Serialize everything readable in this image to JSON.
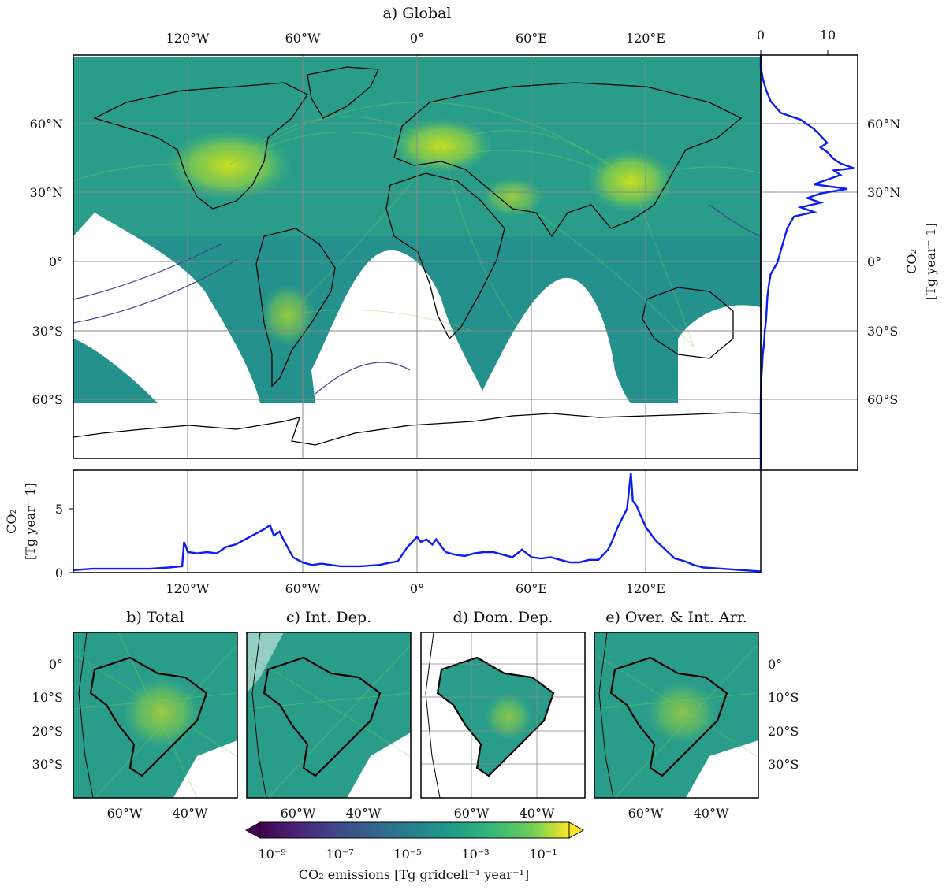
{
  "panels": {
    "a": {
      "title": "a) Global"
    },
    "b": {
      "title": "b) Total"
    },
    "c": {
      "title": "c) Int. Dep."
    },
    "d": {
      "title": "d) Dom. Dep."
    },
    "e": {
      "title": "e) Over. & Int. Arr."
    }
  },
  "map_axes": {
    "lon_ticks": [
      "120°W",
      "60°W",
      "0°",
      "60°E",
      "120°E"
    ],
    "lat_ticks": [
      "60°N",
      "30°N",
      "0°",
      "30°S",
      "60°S"
    ],
    "sub_lat_ticks": [
      "0°",
      "10°S",
      "20°S",
      "30°S"
    ],
    "sub_lon_ticks": [
      "60°W",
      "40°W"
    ]
  },
  "side_profile": {
    "xlabel_top": [
      "0",
      "10"
    ],
    "ylabel_line1": "CO₂",
    "ylabel_line2": "[Tg year⁻ 1]",
    "color": "#0a1df5"
  },
  "bottom_profile": {
    "yticks": [
      "0",
      "5"
    ],
    "ylabel_line1": "CO₂",
    "ylabel_line2": "[Tg year⁻ 1]",
    "color": "#0a1df5"
  },
  "colorbar": {
    "ticks": [
      "10⁻⁹",
      "10⁻⁷",
      "10⁻⁵",
      "10⁻³",
      "10⁻¹"
    ],
    "label": "CO₂ emissions [Tg gridcell⁻¹ year⁻¹]",
    "colormap": "viridis"
  },
  "chart_data": [
    {
      "type": "line",
      "title": "",
      "orientation": "vertical-profile",
      "xlabel": "CO₂ [Tg year⁻ 1]",
      "xlim": [
        0,
        14
      ],
      "lat": [
        90,
        85,
        80,
        75,
        70,
        65,
        62,
        60,
        58,
        55,
        52,
        50,
        48,
        45,
        43,
        41,
        40,
        38,
        36,
        34,
        32,
        30,
        28,
        26,
        24,
        22,
        20,
        15,
        10,
        5,
        0,
        -5,
        -10,
        -15,
        -20,
        -25,
        -30,
        -35,
        -40,
        -45,
        -50,
        -60,
        -70,
        -90
      ],
      "values": [
        0,
        0,
        0.3,
        0.8,
        1.5,
        3,
        6,
        7,
        8,
        9,
        10,
        9,
        10,
        11,
        12,
        14,
        11,
        12,
        10,
        8,
        13,
        9,
        7,
        9,
        6,
        8,
        5,
        4,
        3.5,
        3,
        2.5,
        1.5,
        1.2,
        1,
        0.9,
        0.8,
        0.6,
        0.5,
        0.3,
        0.2,
        0.1,
        0,
        0,
        0
      ]
    },
    {
      "type": "line",
      "title": "",
      "xlabel": "",
      "ylabel": "CO₂ [Tg year⁻ 1]",
      "ylim": [
        0,
        8
      ],
      "lon": [
        -180,
        -170,
        -160,
        -150,
        -140,
        -130,
        -123,
        -122,
        -120,
        -115,
        -110,
        -105,
        -100,
        -95,
        -90,
        -85,
        -80,
        -77,
        -75,
        -72,
        -70,
        -65,
        -60,
        -55,
        -50,
        -45,
        -40,
        -30,
        -20,
        -10,
        -5,
        0,
        2,
        5,
        8,
        10,
        15,
        20,
        25,
        30,
        35,
        40,
        45,
        50,
        55,
        60,
        65,
        70,
        75,
        80,
        85,
        90,
        95,
        100,
        102,
        105,
        108,
        110,
        112,
        113,
        115,
        117,
        120,
        125,
        130,
        135,
        140,
        145,
        150,
        160,
        170,
        180
      ],
      "values": [
        0.2,
        0.3,
        0.3,
        0.3,
        0.3,
        0.4,
        0.5,
        2.4,
        1.6,
        1.5,
        1.6,
        1.5,
        2.0,
        2.2,
        2.6,
        3.0,
        3.4,
        3.7,
        2.9,
        3.2,
        2.6,
        1.2,
        0.8,
        0.6,
        0.7,
        0.6,
        0.5,
        0.5,
        0.6,
        0.9,
        2.0,
        2.8,
        2.4,
        2.6,
        2.2,
        2.6,
        1.6,
        1.4,
        1.3,
        1.5,
        1.6,
        1.6,
        1.4,
        1.2,
        1.8,
        1.2,
        1.1,
        1.2,
        1.0,
        0.8,
        0.8,
        1.0,
        1.0,
        1.8,
        2.4,
        3.5,
        4.4,
        5.0,
        7.8,
        5.6,
        5.2,
        4.5,
        3.5,
        2.5,
        1.8,
        1.1,
        0.9,
        0.6,
        0.4,
        0.3,
        0.2,
        0.1
      ]
    }
  ]
}
